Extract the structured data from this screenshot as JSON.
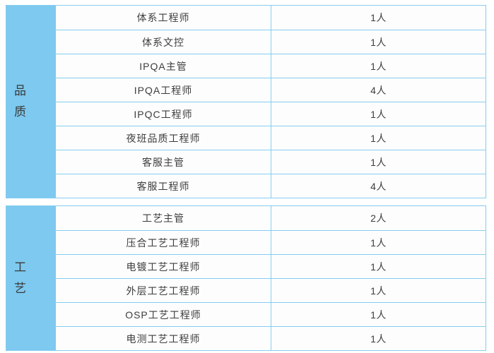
{
  "table": {
    "colors": {
      "section_label_bg": "#7dc9ef",
      "grid_border": "#87cdf1",
      "text": "#3d3d3d",
      "page_bg": "#ffffff"
    },
    "sections": [
      {
        "label": "品质",
        "rows": [
          {
            "title": "体系工程师",
            "count": "1人"
          },
          {
            "title": "体系文控",
            "count": "1人"
          },
          {
            "title": "IPQA主管",
            "count": "1人"
          },
          {
            "title": "IPQA工程师",
            "count": "4人"
          },
          {
            "title": "IPQC工程师",
            "count": "1人"
          },
          {
            "title": "夜班品质工程师",
            "count": "1人"
          },
          {
            "title": "客服主管",
            "count": "1人"
          },
          {
            "title": "客服工程师",
            "count": "4人"
          }
        ]
      },
      {
        "label": "工艺",
        "rows": [
          {
            "title": "工艺主管",
            "count": "2人"
          },
          {
            "title": "压合工艺工程师",
            "count": "1人"
          },
          {
            "title": "电镀工艺工程师",
            "count": "1人"
          },
          {
            "title": "外层工艺工程师",
            "count": "1人"
          },
          {
            "title": "OSP工艺工程师",
            "count": "1人"
          },
          {
            "title": "电测工艺工程师",
            "count": "1人"
          }
        ]
      }
    ]
  }
}
